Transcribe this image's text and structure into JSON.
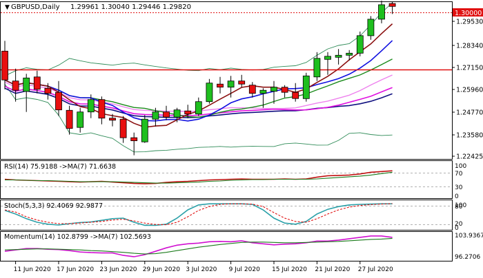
{
  "header": {
    "symbol": "GBPUSD,Daily",
    "ohlc": "1.29961 1.30040 1.29446 1.29820"
  },
  "panels": {
    "rsi_label": "RSI(14) 75.9188 ->MA(7) 71.6638",
    "stoch_label": "Stoch(5,3,3) 92.4069 92.9877",
    "momentum_label": "Momentum(14) 102.8799 ->MA(7) 102.5693"
  },
  "colors": {
    "bull": "#1fbf1f",
    "bear": "#e81010",
    "sma_fast": "#8b1010",
    "sma_mid": "#1010e0",
    "sma_green": "#1a8a1a",
    "sma_violet": "#ee82ee",
    "sma_magenta": "#e010e0",
    "sma_navy": "#101080",
    "band": "#2e8b57",
    "hline_red": "#e01010",
    "price_tag_bg": "#e01010"
  },
  "chart_data": [
    {
      "type": "candlestick",
      "title": "GBPUSD,Daily",
      "price_axis_ticks": [
        "1.30000",
        "1.29530",
        "1.28340",
        "1.27150",
        "1.25960",
        "1.24770",
        "1.23580",
        "1.22425"
      ],
      "current_price_label": "1.30000",
      "ylim": [
        1.2242,
        1.3003
      ],
      "x_ticks": [
        "11 Jun 2020",
        "17 Jun 2020",
        "23 Jun 2020",
        "29 Jun 2020",
        "3 Jul 2020",
        "9 Jul 2020",
        "15 Jul 2020",
        "21 Jul 2020",
        "27 Jul 2020"
      ],
      "candles": [
        {
          "o": 1.2765,
          "h": 1.2815,
          "l": 1.258,
          "c": 1.2625
        },
        {
          "o": 1.262,
          "h": 1.268,
          "l": 1.252,
          "c": 1.2575
        },
        {
          "o": 1.257,
          "h": 1.2655,
          "l": 1.247,
          "c": 1.2635
        },
        {
          "o": 1.264,
          "h": 1.267,
          "l": 1.256,
          "c": 1.258
        },
        {
          "o": 1.2585,
          "h": 1.261,
          "l": 1.253,
          "c": 1.256
        },
        {
          "o": 1.2565,
          "h": 1.262,
          "l": 1.245,
          "c": 1.248
        },
        {
          "o": 1.2478,
          "h": 1.25,
          "l": 1.236,
          "c": 1.239
        },
        {
          "o": 1.2395,
          "h": 1.249,
          "l": 1.237,
          "c": 1.247
        },
        {
          "o": 1.247,
          "h": 1.2555,
          "l": 1.244,
          "c": 1.253
        },
        {
          "o": 1.253,
          "h": 1.2545,
          "l": 1.241,
          "c": 1.244
        },
        {
          "o": 1.244,
          "h": 1.246,
          "l": 1.24,
          "c": 1.243
        },
        {
          "o": 1.2435,
          "h": 1.245,
          "l": 1.232,
          "c": 1.2345
        },
        {
          "o": 1.2345,
          "h": 1.237,
          "l": 1.226,
          "c": 1.233
        },
        {
          "o": 1.2325,
          "h": 1.2455,
          "l": 1.232,
          "c": 1.2435
        },
        {
          "o": 1.2435,
          "h": 1.249,
          "l": 1.24,
          "c": 1.247
        },
        {
          "o": 1.247,
          "h": 1.25,
          "l": 1.243,
          "c": 1.2445
        },
        {
          "o": 1.2445,
          "h": 1.249,
          "l": 1.242,
          "c": 1.248
        },
        {
          "o": 1.2475,
          "h": 1.2505,
          "l": 1.244,
          "c": 1.246
        },
        {
          "o": 1.246,
          "h": 1.254,
          "l": 1.245,
          "c": 1.252
        },
        {
          "o": 1.252,
          "h": 1.263,
          "l": 1.251,
          "c": 1.261
        },
        {
          "o": 1.2605,
          "h": 1.264,
          "l": 1.256,
          "c": 1.259
        },
        {
          "o": 1.259,
          "h": 1.2645,
          "l": 1.254,
          "c": 1.262
        },
        {
          "o": 1.262,
          "h": 1.265,
          "l": 1.259,
          "c": 1.2605
        },
        {
          "o": 1.26,
          "h": 1.2615,
          "l": 1.254,
          "c": 1.256
        },
        {
          "o": 1.256,
          "h": 1.2585,
          "l": 1.249,
          "c": 1.2575
        },
        {
          "o": 1.257,
          "h": 1.262,
          "l": 1.251,
          "c": 1.259
        },
        {
          "o": 1.259,
          "h": 1.26,
          "l": 1.254,
          "c": 1.2565
        },
        {
          "o": 1.2565,
          "h": 1.261,
          "l": 1.252,
          "c": 1.2535
        },
        {
          "o": 1.2535,
          "h": 1.266,
          "l": 1.252,
          "c": 1.2645
        },
        {
          "o": 1.264,
          "h": 1.276,
          "l": 1.262,
          "c": 1.273
        },
        {
          "o": 1.2725,
          "h": 1.276,
          "l": 1.265,
          "c": 1.274
        },
        {
          "o": 1.2735,
          "h": 1.2775,
          "l": 1.27,
          "c": 1.2745
        },
        {
          "o": 1.2745,
          "h": 1.277,
          "l": 1.272,
          "c": 1.2755
        },
        {
          "o": 1.2755,
          "h": 1.286,
          "l": 1.274,
          "c": 1.284
        },
        {
          "o": 1.284,
          "h": 1.2935,
          "l": 1.282,
          "c": 1.292
        },
        {
          "o": 1.292,
          "h": 1.301,
          "l": 1.29,
          "c": 1.299
        },
        {
          "o": 1.2996,
          "h": 1.3004,
          "l": 1.2945,
          "c": 1.2982
        }
      ]
    },
    {
      "type": "line",
      "title": "RSI(14) 75.9188 ->MA(7) 71.6638",
      "axis_ticks": [
        "100",
        "70",
        "30",
        "0"
      ],
      "ylim": [
        0,
        100
      ],
      "series": [
        {
          "values": [
            52,
            50,
            49,
            48,
            47,
            46,
            45,
            44,
            45,
            46,
            44,
            42,
            40,
            39,
            40,
            43,
            45,
            46,
            48,
            50,
            51,
            52,
            53,
            52,
            52,
            52,
            53,
            52,
            53,
            58,
            62,
            63,
            64,
            67,
            72,
            74,
            76
          ]
        },
        {
          "values": [
            50,
            50,
            49,
            48,
            48,
            47,
            46,
            45,
            45,
            45,
            45,
            44,
            43,
            42,
            41,
            41,
            42,
            43,
            44,
            46,
            47,
            49,
            50,
            51,
            51,
            52,
            52,
            52,
            52,
            53,
            55,
            57,
            59,
            61,
            64,
            68,
            72
          ]
        }
      ]
    },
    {
      "type": "line",
      "title": "Stoch(5,3,3) 92.4069 92.9877",
      "axis_ticks": [
        "100",
        "80",
        "20",
        "0"
      ],
      "ylim": [
        0,
        100
      ],
      "series": [
        {
          "values": [
            68,
            55,
            38,
            25,
            18,
            15,
            20,
            24,
            26,
            32,
            38,
            40,
            25,
            14,
            14,
            18,
            40,
            70,
            88,
            92,
            92,
            92,
            92,
            90,
            70,
            40,
            22,
            18,
            28,
            55,
            72,
            82,
            88,
            90,
            91,
            92,
            92
          ]
        },
        {
          "values": [
            70,
            62,
            45,
            33,
            25,
            20,
            20,
            22,
            25,
            28,
            33,
            36,
            30,
            22,
            17,
            16,
            25,
            45,
            68,
            82,
            90,
            92,
            92,
            91,
            82,
            60,
            40,
            28,
            25,
            38,
            55,
            70,
            80,
            86,
            89,
            91,
            93
          ]
        }
      ]
    },
    {
      "type": "line",
      "title": "Momentum(14) 102.8799 ->MA(7) 102.5693",
      "axis_ticks": [
        "103.9367",
        "96.2706"
      ],
      "ylim": [
        96.0,
        104.3
      ],
      "series": [
        {
          "values": [
            98.8,
            99.2,
            99.6,
            99.6,
            99.4,
            99.3,
            99.0,
            98.6,
            98.4,
            98.3,
            98.3,
            97.6,
            97.2,
            97.8,
            98.8,
            99.8,
            100.6,
            101.0,
            101.2,
            101.6,
            101.7,
            101.6,
            101.9,
            101.3,
            101.0,
            100.7,
            100.9,
            101.0,
            101.3,
            101.8,
            101.8,
            102.1,
            102.5,
            102.9,
            103.3,
            103.3,
            102.9
          ]
        },
        {
          "values": [
            99.2,
            99.3,
            99.4,
            99.5,
            99.5,
            99.4,
            99.3,
            99.2,
            99.0,
            98.9,
            98.7,
            98.5,
            98.2,
            98.0,
            98.1,
            98.5,
            99.0,
            99.5,
            100.0,
            100.4,
            100.8,
            101.1,
            101.4,
            101.5,
            101.5,
            101.4,
            101.3,
            101.3,
            101.4,
            101.5,
            101.6,
            101.7,
            101.9,
            102.1,
            102.3,
            102.4,
            102.6
          ]
        }
      ]
    }
  ]
}
